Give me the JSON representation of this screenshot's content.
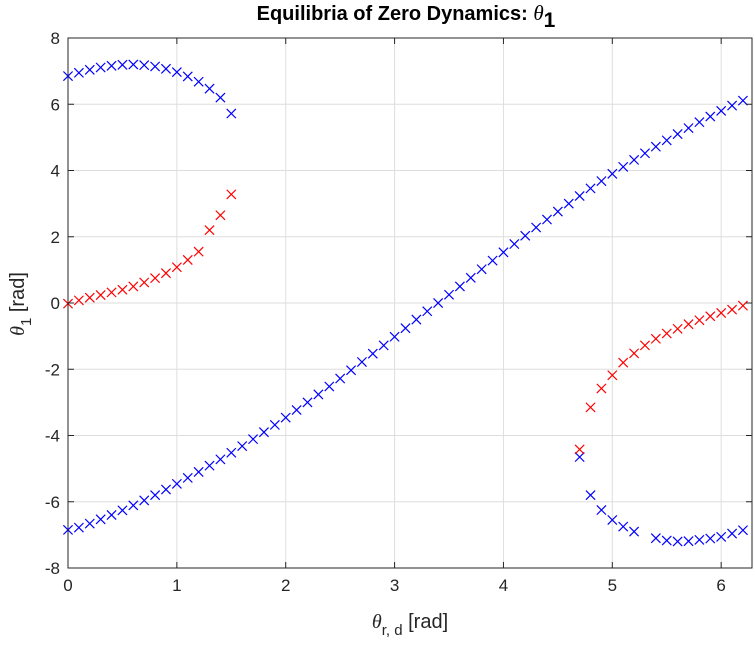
{
  "chart_data": {
    "type": "scatter",
    "title": "Equilibria of Zero Dynamics: ",
    "title_symbol": "θ",
    "title_subscript": "1",
    "xlabel_symbol": "θ",
    "xlabel_subscript": "r, d",
    "xlabel_unit": " [rad]",
    "ylabel_symbol": "θ",
    "ylabel_subscript": "1",
    "ylabel_unit": " [rad]",
    "xlim": [
      0,
      6.2832
    ],
    "ylim": [
      -8,
      8
    ],
    "xticks": [
      0,
      1,
      2,
      3,
      4,
      5,
      6
    ],
    "yticks": [
      -8,
      -6,
      -4,
      -2,
      0,
      2,
      4,
      6,
      8
    ],
    "xtick_labels": [
      "0",
      "1",
      "2",
      "3",
      "4",
      "5",
      "6"
    ],
    "ytick_labels": [
      "-8",
      "-6",
      "-4",
      "-2",
      "0",
      "2",
      "4",
      "6",
      "8"
    ],
    "grid": true,
    "marker": "x",
    "series": [
      {
        "color": "#0000ff",
        "points": [
          [
            0.0,
            -6.85
          ],
          [
            0.1,
            -6.78
          ],
          [
            0.2,
            -6.66
          ],
          [
            0.3,
            -6.53
          ],
          [
            0.4,
            -6.4
          ],
          [
            0.5,
            -6.26
          ],
          [
            0.6,
            -6.11
          ],
          [
            0.7,
            -5.96
          ],
          [
            0.8,
            -5.8
          ],
          [
            0.9,
            -5.63
          ],
          [
            1.0,
            -5.46
          ],
          [
            1.1,
            -5.28
          ],
          [
            1.2,
            -5.1
          ],
          [
            1.3,
            -4.91
          ],
          [
            1.4,
            -4.72
          ],
          [
            1.5,
            -4.52
          ],
          [
            1.6,
            -4.32
          ],
          [
            1.7,
            -4.11
          ],
          [
            1.8,
            -3.9
          ],
          [
            1.9,
            -3.68
          ],
          [
            2.0,
            -3.46
          ],
          [
            2.1,
            -3.23
          ],
          [
            2.2,
            -3.0
          ],
          [
            2.3,
            -2.76
          ],
          [
            2.4,
            -2.52
          ],
          [
            2.5,
            -2.28
          ],
          [
            2.6,
            -2.03
          ],
          [
            2.7,
            -1.78
          ],
          [
            2.8,
            -1.53
          ],
          [
            2.9,
            -1.28
          ],
          [
            3.0,
            -1.02
          ],
          [
            3.1,
            -0.76
          ],
          [
            3.2,
            -0.5
          ],
          [
            3.3,
            -0.25
          ],
          [
            3.4,
            0.0
          ],
          [
            3.5,
            0.25
          ],
          [
            3.6,
            0.5
          ],
          [
            3.7,
            0.76
          ],
          [
            3.8,
            1.02
          ],
          [
            3.9,
            1.28
          ],
          [
            4.0,
            1.53
          ],
          [
            4.1,
            1.78
          ],
          [
            4.2,
            2.03
          ],
          [
            4.3,
            2.28
          ],
          [
            4.4,
            2.52
          ],
          [
            4.5,
            2.76
          ],
          [
            4.6,
            3.0
          ],
          [
            4.7,
            3.23
          ],
          [
            4.8,
            3.46
          ],
          [
            4.9,
            3.68
          ],
          [
            5.0,
            3.9
          ],
          [
            5.1,
            4.11
          ],
          [
            5.2,
            4.32
          ],
          [
            5.3,
            4.52
          ],
          [
            5.4,
            4.72
          ],
          [
            5.5,
            4.91
          ],
          [
            5.6,
            5.1
          ],
          [
            5.7,
            5.28
          ],
          [
            5.8,
            5.46
          ],
          [
            5.9,
            5.63
          ],
          [
            6.0,
            5.8
          ],
          [
            6.1,
            5.96
          ],
          [
            6.2,
            6.11
          ],
          [
            0.0,
            6.85
          ],
          [
            0.1,
            6.95
          ],
          [
            0.2,
            7.04
          ],
          [
            0.3,
            7.11
          ],
          [
            0.4,
            7.16
          ],
          [
            0.5,
            7.19
          ],
          [
            0.6,
            7.2
          ],
          [
            0.7,
            7.18
          ],
          [
            0.8,
            7.14
          ],
          [
            0.9,
            7.07
          ],
          [
            1.0,
            6.97
          ],
          [
            1.1,
            6.84
          ],
          [
            1.2,
            6.68
          ],
          [
            1.3,
            6.47
          ],
          [
            1.4,
            6.2
          ],
          [
            1.5,
            5.72
          ],
          [
            4.7,
            -4.65
          ],
          [
            4.8,
            -5.8
          ],
          [
            4.9,
            -6.25
          ],
          [
            5.0,
            -6.55
          ],
          [
            5.1,
            -6.75
          ],
          [
            5.2,
            -6.9
          ],
          [
            5.4,
            -7.1
          ],
          [
            5.5,
            -7.17
          ],
          [
            5.6,
            -7.2
          ],
          [
            5.7,
            -7.19
          ],
          [
            5.8,
            -7.15
          ],
          [
            5.9,
            -7.11
          ],
          [
            6.0,
            -7.06
          ],
          [
            6.1,
            -6.96
          ],
          [
            6.2,
            -6.86
          ]
        ]
      },
      {
        "color": "#ff0000",
        "points": [
          [
            0.0,
            -0.02
          ],
          [
            0.1,
            0.08
          ],
          [
            0.2,
            0.16
          ],
          [
            0.3,
            0.24
          ],
          [
            0.4,
            0.32
          ],
          [
            0.5,
            0.4
          ],
          [
            0.6,
            0.5
          ],
          [
            0.7,
            0.62
          ],
          [
            0.8,
            0.75
          ],
          [
            0.9,
            0.9
          ],
          [
            1.0,
            1.08
          ],
          [
            1.1,
            1.3
          ],
          [
            1.2,
            1.55
          ],
          [
            1.3,
            2.2
          ],
          [
            1.4,
            2.65
          ],
          [
            1.5,
            3.28
          ],
          [
            4.7,
            -4.42
          ],
          [
            4.8,
            -3.15
          ],
          [
            4.9,
            -2.58
          ],
          [
            5.0,
            -2.18
          ],
          [
            5.1,
            -1.8
          ],
          [
            5.2,
            -1.52
          ],
          [
            5.3,
            -1.28
          ],
          [
            5.4,
            -1.08
          ],
          [
            5.5,
            -0.92
          ],
          [
            5.6,
            -0.78
          ],
          [
            5.7,
            -0.64
          ],
          [
            5.8,
            -0.52
          ],
          [
            5.9,
            -0.4
          ],
          [
            6.0,
            -0.3
          ],
          [
            6.1,
            -0.2
          ],
          [
            6.2,
            -0.08
          ]
        ]
      }
    ]
  }
}
